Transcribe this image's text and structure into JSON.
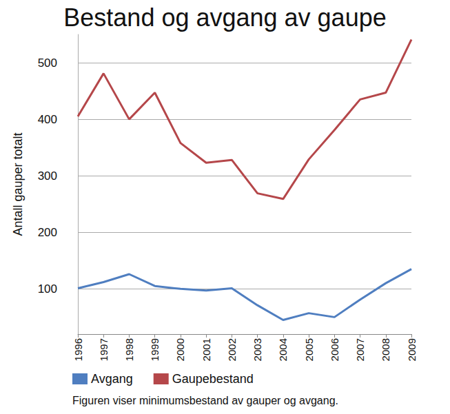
{
  "chart_data": {
    "type": "line",
    "title": "Bestand og avgang av gaupe",
    "caption": "Figuren viser minimumsbestand av gauper og avgang.",
    "y_label": "Antall gauper totalt",
    "categories": [
      "1996",
      "1997",
      "1998",
      "1999",
      "2000",
      "2001",
      "2002",
      "2003",
      "2004",
      "2005",
      "2006",
      "2007",
      "2008",
      "2009"
    ],
    "series": [
      {
        "name": "Avgang",
        "color": "#4f7ec0",
        "values": [
          101,
          112,
          126,
          105,
          100,
          97,
          101,
          71,
          45,
          57,
          50,
          81,
          110,
          135
        ]
      },
      {
        "name": "Gaupebestand",
        "color": "#b5474a",
        "values": [
          405,
          481,
          400,
          447,
          358,
          323,
          328,
          269,
          259,
          329,
          381,
          435,
          447,
          541
        ]
      }
    ],
    "ylim": [
      20,
      550
    ],
    "yticks": [
      100,
      200,
      300,
      400,
      500
    ],
    "grid": true,
    "legend": "bottom"
  }
}
